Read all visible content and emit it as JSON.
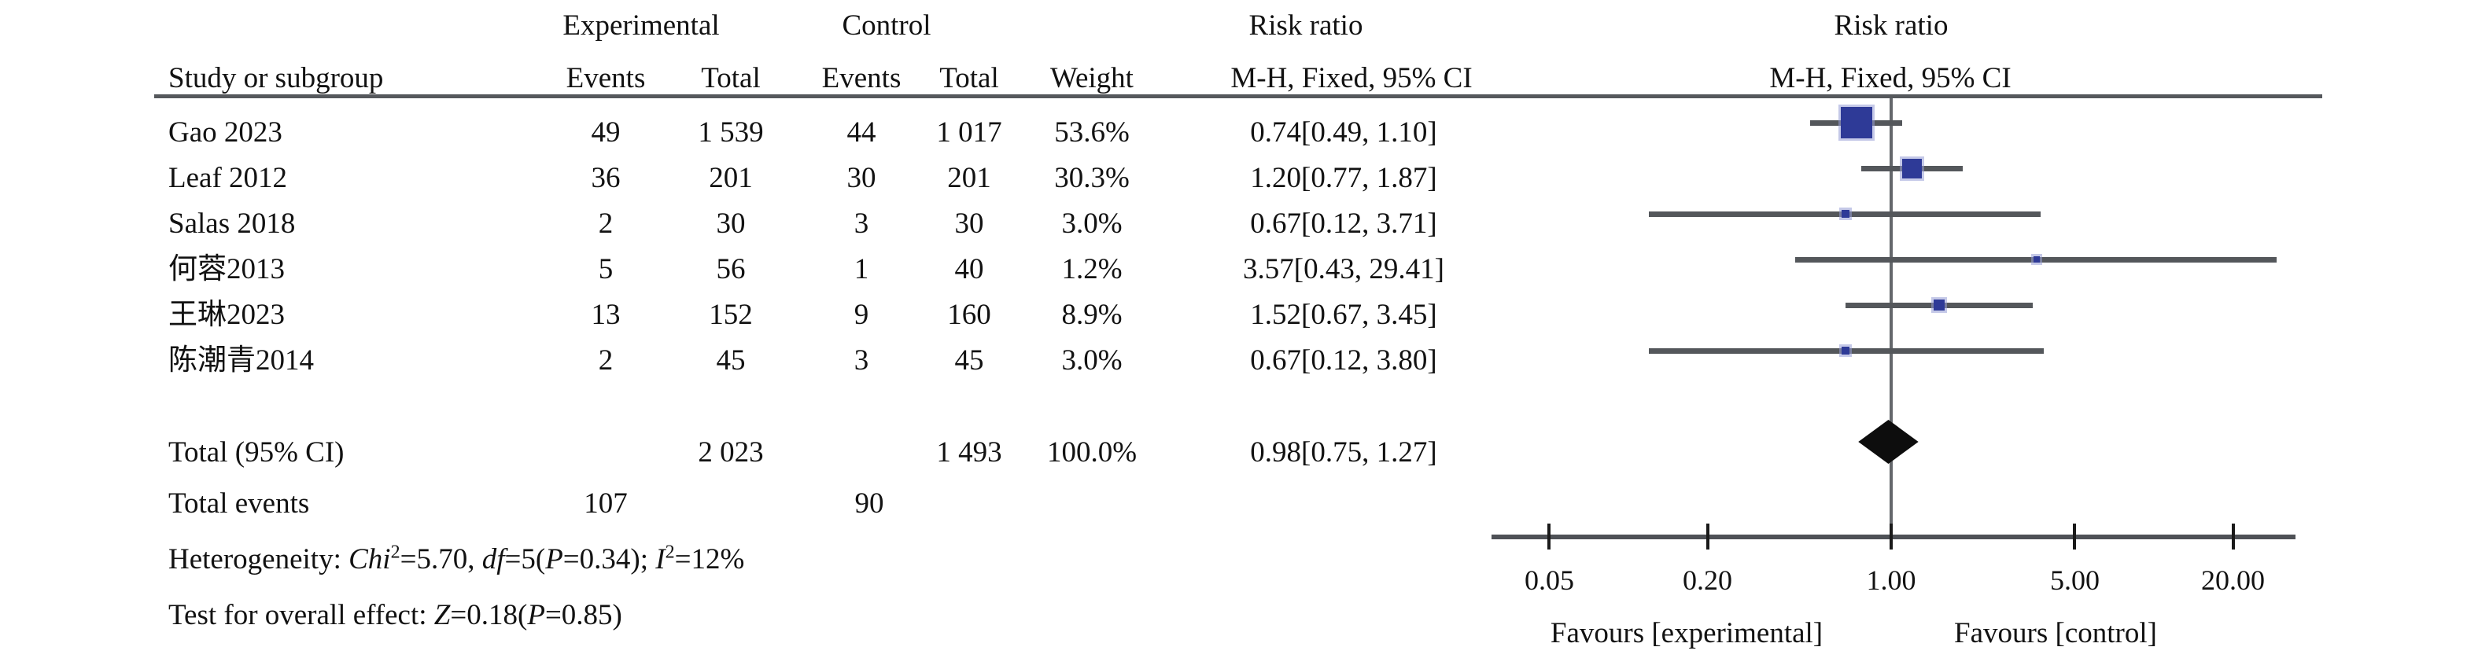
{
  "header": {
    "group_experimental": "Experimental",
    "group_control": "Control",
    "risk_ratio_left": "Risk ratio",
    "risk_ratio_right": "Risk ratio",
    "study_or_subgroup": "Study or subgroup",
    "events_exp": "Events",
    "total_exp": "Total",
    "events_ctl": "Events",
    "total_ctl": "Total",
    "weight": "Weight",
    "mh_left": "M-H, Fixed, 95% CI",
    "mh_right": "M-H, Fixed, 95% CI"
  },
  "table": {
    "rows": [
      {
        "study": "Gao 2023",
        "events_exp": "49",
        "total_exp": "1 539",
        "events_ctl": "44",
        "total_ctl": "1 017",
        "weight": "53.6%",
        "ci_text": "0.74[0.49, 1.10]"
      },
      {
        "study": "Leaf 2012",
        "events_exp": "36",
        "total_exp": "201",
        "events_ctl": "30",
        "total_ctl": "201",
        "weight": "30.3%",
        "ci_text": "1.20[0.77, 1.87]"
      },
      {
        "study": "Salas 2018",
        "events_exp": "2",
        "total_exp": "30",
        "events_ctl": "3",
        "total_ctl": "30",
        "weight": "3.0%",
        "ci_text": "0.67[0.12, 3.71]"
      },
      {
        "study": "何蓉2013",
        "events_exp": "5",
        "total_exp": "56",
        "events_ctl": "1",
        "total_ctl": "40",
        "weight": "1.2%",
        "ci_text": "3.57[0.43, 29.41]"
      },
      {
        "study": "王琳2023",
        "events_exp": "13",
        "total_exp": "152",
        "events_ctl": "9",
        "total_ctl": "160",
        "weight": "8.9%",
        "ci_text": "1.52[0.67, 3.45]"
      },
      {
        "study": "陈潮青2014",
        "events_exp": "2",
        "total_exp": "45",
        "events_ctl": "3",
        "total_ctl": "45",
        "weight": "3.0%",
        "ci_text": "0.67[0.12, 3.80]"
      }
    ],
    "totals": {
      "label": "Total (95% CI)",
      "total_exp": "2 023",
      "total_ctl": "1 493",
      "weight": "100.0%",
      "ci_text": "0.98[0.75, 1.27]",
      "events_label": "Total events",
      "events_exp": "107",
      "events_ctl": "90"
    }
  },
  "stats": {
    "heterogeneity_segments": [
      {
        "text": "Heterogeneity: "
      },
      {
        "text": "Chi",
        "italic": true
      },
      {
        "text": "2",
        "sup": true
      },
      {
        "text": "=5.70, "
      },
      {
        "text": "df",
        "italic": true
      },
      {
        "text": "=5("
      },
      {
        "text": "P",
        "italic": true
      },
      {
        "text": "=0.34); "
      },
      {
        "text": "I",
        "italic": true
      },
      {
        "text": "2",
        "sup": true
      },
      {
        "text": "=12%"
      }
    ],
    "overall_segments": [
      {
        "text": "Test for overall effect: "
      },
      {
        "text": "Z",
        "italic": true
      },
      {
        "text": "=0.18("
      },
      {
        "text": "P",
        "italic": true
      },
      {
        "text": "=0.85)"
      }
    ]
  },
  "axis": {
    "tick_labels": [
      "0.05",
      "0.20",
      "1.00",
      "5.00",
      "20.00"
    ],
    "favours_left": "Favours [experimental]",
    "favours_right": "Favours [control]"
  },
  "chart_data": {
    "type": "scatter",
    "subtype": "forest-plot",
    "effect_measure": "Risk ratio (M-H, Fixed, 95% CI)",
    "x_scale": "log",
    "x_ticks": [
      0.05,
      0.2,
      1.0,
      5.0,
      20.0
    ],
    "x_range_drawn": [
      0.03,
      34.5
    ],
    "null_line": 1.0,
    "studies": [
      {
        "name": "Gao 2023",
        "rr": 0.74,
        "ci_low": 0.49,
        "ci_high": 1.1,
        "weight_pct": 53.6,
        "events_exp": 49,
        "total_exp": 1539,
        "events_ctl": 44,
        "total_ctl": 1017,
        "marker_px": 40
      },
      {
        "name": "Leaf 2012",
        "rr": 1.2,
        "ci_low": 0.77,
        "ci_high": 1.87,
        "weight_pct": 30.3,
        "events_exp": 36,
        "total_exp": 201,
        "events_ctl": 30,
        "total_ctl": 201,
        "marker_px": 25
      },
      {
        "name": "Salas 2018",
        "rr": 0.67,
        "ci_low": 0.12,
        "ci_high": 3.71,
        "weight_pct": 3.0,
        "events_exp": 2,
        "total_exp": 30,
        "events_ctl": 3,
        "total_ctl": 30,
        "marker_px": 10
      },
      {
        "name": "何蓉2013",
        "rr": 3.57,
        "ci_low": 0.43,
        "ci_high": 29.41,
        "weight_pct": 1.2,
        "events_exp": 5,
        "total_exp": 56,
        "events_ctl": 1,
        "total_ctl": 40,
        "marker_px": 8
      },
      {
        "name": "王琳2023",
        "rr": 1.52,
        "ci_low": 0.67,
        "ci_high": 3.45,
        "weight_pct": 8.9,
        "events_exp": 13,
        "total_exp": 152,
        "events_ctl": 9,
        "total_ctl": 160,
        "marker_px": 14
      },
      {
        "name": "陈潮青2014",
        "rr": 0.67,
        "ci_low": 0.12,
        "ci_high": 3.8,
        "weight_pct": 3.0,
        "events_exp": 2,
        "total_exp": 45,
        "events_ctl": 3,
        "total_ctl": 45,
        "marker_px": 10
      }
    ],
    "total": {
      "rr": 0.98,
      "ci_low": 0.75,
      "ci_high": 1.27,
      "weight_pct": 100.0,
      "total_exp": 2023,
      "total_ctl": 1493,
      "events_exp": 107,
      "events_ctl": 90
    },
    "heterogeneity": {
      "chi2": 5.7,
      "df": 5,
      "p": 0.34,
      "i2_pct": 12
    },
    "overall_effect": {
      "z": 0.18,
      "p": 0.85
    }
  },
  "colors": {
    "marker": "#2e3a97",
    "marker_halo": "#969cd6",
    "ci_line": "#54575b",
    "axis": "#4e5156",
    "null_line": "#64676b",
    "diamond": "#0d0d0d",
    "header_rule": "#55585c",
    "text": "#121212"
  }
}
